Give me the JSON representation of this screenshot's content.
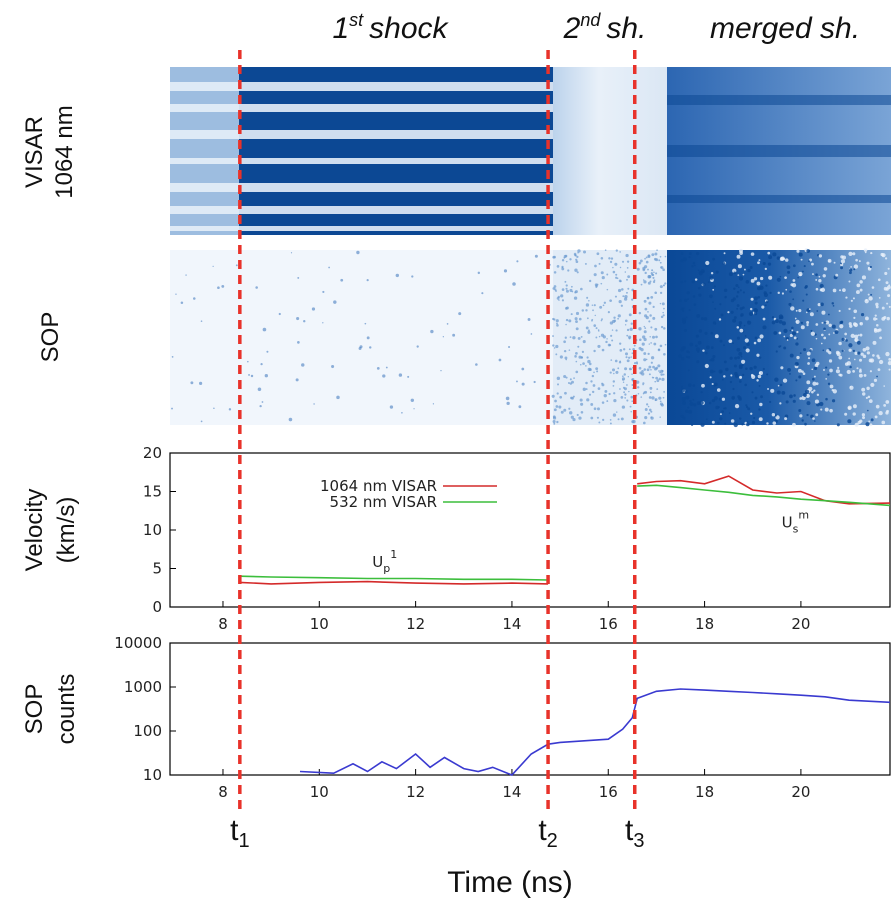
{
  "headers": [
    {
      "num": "1",
      "sup": "st",
      "text": "shock"
    },
    {
      "num": "2",
      "sup": "nd",
      "text": "sh."
    },
    {
      "text": "merged sh."
    }
  ],
  "image_labels": [
    [
      "VISAR",
      "1064 nm"
    ],
    [
      "SOP"
    ]
  ],
  "x_label": "Time (ns)",
  "markers": [
    {
      "value": 8.35,
      "label": "t",
      "sub": "1"
    },
    {
      "value": 14.75,
      "label": "t",
      "sub": "2"
    },
    {
      "value": 16.55,
      "label": "t",
      "sub": "3"
    }
  ],
  "chart_data": [
    {
      "type": "line",
      "y_label": [
        "Velocity",
        "(km/s)"
      ],
      "xlim": [
        6.9,
        21.85
      ],
      "xticks": [
        8,
        10,
        12,
        14,
        16,
        18,
        20
      ],
      "ylim": [
        0,
        20
      ],
      "yticks": [
        0,
        5,
        10,
        15,
        20
      ],
      "x": [
        8.35,
        9,
        10,
        11,
        12,
        13,
        14,
        14.75,
        null,
        16.6,
        17,
        17.5,
        18,
        18.5,
        19,
        19.5,
        20,
        20.5,
        21,
        21.85
      ],
      "series": [
        {
          "name": "1064 nm VISAR",
          "color": "#d42a2a",
          "values": [
            3.2,
            3.0,
            3.2,
            3.3,
            3.1,
            3.0,
            3.1,
            3.0,
            null,
            16.0,
            16.3,
            16.4,
            16.0,
            17.0,
            15.2,
            14.8,
            15.0,
            13.8,
            13.4,
            13.5
          ]
        },
        {
          "name": "532 nm VISAR",
          "color": "#3cbe3c",
          "values": [
            4.0,
            3.9,
            3.8,
            3.7,
            3.7,
            3.6,
            3.6,
            3.5,
            null,
            15.7,
            15.8,
            15.5,
            15.2,
            14.9,
            14.5,
            14.3,
            14.0,
            13.8,
            13.6,
            13.2
          ]
        }
      ],
      "annotations": [
        {
          "text": "U",
          "sub": "p",
          "sup": "1",
          "x": 11.1,
          "y": 5.2
        },
        {
          "text": "U",
          "sub": "s",
          "sup": "m",
          "x": 19.6,
          "y": 10.3
        }
      ]
    },
    {
      "type": "line",
      "y_label": [
        "SOP",
        "counts"
      ],
      "log_scale": true,
      "xlim": [
        6.9,
        21.85
      ],
      "xticks": [
        8,
        10,
        12,
        14,
        16,
        18,
        20
      ],
      "ylim": [
        10,
        10000
      ],
      "yticks": [
        10,
        100,
        1000,
        10000
      ],
      "x": [
        9.6,
        10.3,
        10.7,
        11.0,
        11.3,
        11.6,
        12.0,
        12.3,
        12.6,
        13.0,
        13.3,
        13.6,
        14.0,
        14.4,
        14.75,
        15.0,
        15.5,
        16.0,
        16.3,
        16.5,
        16.6,
        17,
        17.5,
        18,
        18.5,
        19,
        19.5,
        20,
        20.5,
        21,
        21.85
      ],
      "series": [
        {
          "name": "SOP",
          "color": "#3a3ad0",
          "values": [
            12,
            11,
            18,
            12,
            20,
            14,
            30,
            15,
            25,
            14,
            12,
            15,
            10,
            30,
            50,
            55,
            60,
            65,
            110,
            200,
            550,
            800,
            900,
            850,
            800,
            750,
            700,
            650,
            600,
            500,
            450
          ]
        }
      ]
    }
  ]
}
